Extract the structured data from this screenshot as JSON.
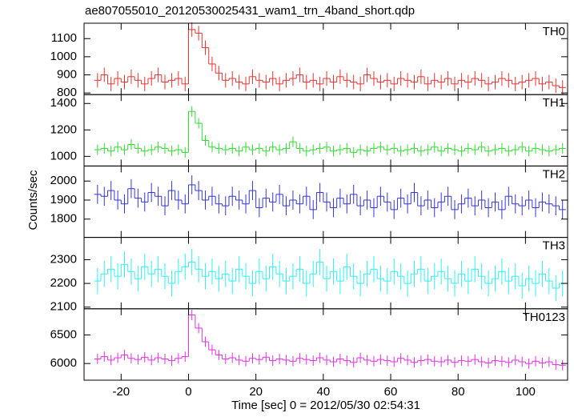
{
  "chart_data": [
    {
      "type": "line",
      "title": "ae807055010_20120530025431_wam1_trn_4band_short.qdp",
      "label": "TH0",
      "color": "#e8322f",
      "error": 40,
      "x": [
        -27,
        -25,
        -23,
        -21,
        -19,
        -17,
        -15,
        -13,
        -11,
        -9,
        -7,
        -5,
        -3,
        -1,
        1,
        3,
        5,
        7,
        9,
        11,
        13,
        15,
        17,
        19,
        21,
        23,
        25,
        27,
        29,
        31,
        33,
        35,
        37,
        39,
        41,
        43,
        45,
        47,
        49,
        51,
        53,
        55,
        57,
        59,
        61,
        63,
        65,
        67,
        69,
        71,
        73,
        75,
        77,
        79,
        81,
        83,
        85,
        87,
        89,
        91,
        93,
        95,
        97,
        99,
        101,
        103,
        105,
        107,
        109,
        111
      ],
      "values": [
        870,
        900,
        850,
        880,
        860,
        890,
        870,
        850,
        880,
        900,
        860,
        870,
        880,
        850,
        1150,
        1130,
        1050,
        960,
        910,
        870,
        880,
        860,
        850,
        890,
        870,
        860,
        880,
        850,
        870,
        880,
        900,
        860,
        870,
        850,
        880,
        860,
        890,
        870,
        860,
        850,
        900,
        880,
        860,
        870,
        850,
        880,
        870,
        860,
        890,
        850,
        870,
        860,
        880,
        850,
        870,
        860,
        880,
        870,
        850,
        860,
        880,
        870,
        850,
        860,
        870,
        880,
        850,
        860,
        840,
        830
      ],
      "ylim": [
        791,
        1185
      ],
      "yticks": [
        800,
        900,
        1000,
        1100
      ]
    },
    {
      "type": "line",
      "label": "TH1",
      "color": "#2fdc2f",
      "error": 40,
      "values": [
        1050,
        1060,
        1040,
        1070,
        1050,
        1090,
        1060,
        1040,
        1050,
        1070,
        1060,
        1040,
        1050,
        1030,
        1340,
        1250,
        1120,
        1070,
        1060,
        1050,
        1060,
        1040,
        1070,
        1050,
        1060,
        1040,
        1070,
        1050,
        1060,
        1110,
        1060,
        1040,
        1050,
        1060,
        1070,
        1040,
        1050,
        1060,
        1030,
        1050,
        1040,
        1060,
        1070,
        1050,
        1060,
        1040,
        1050,
        1060,
        1040,
        1050,
        1070,
        1040,
        1060,
        1050,
        1040,
        1060,
        1050,
        1070,
        1040,
        1050,
        1060,
        1040,
        1050,
        1070,
        1040,
        1060,
        1050,
        1040,
        1050,
        1060
      ],
      "ylim": [
        927,
        1467
      ],
      "yticks": [
        1000,
        1200,
        1400
      ]
    },
    {
      "type": "line",
      "label": "TH2",
      "color": "#3535d8",
      "error": 50,
      "y_label": "Counts/sec",
      "values": [
        1930,
        1920,
        1950,
        1900,
        1880,
        1960,
        1910,
        1890,
        1940,
        1920,
        1870,
        1950,
        1900,
        1880,
        1980,
        1950,
        1900,
        1920,
        1880,
        1870,
        1920,
        1900,
        1880,
        1950,
        1860,
        1910,
        1890,
        1930,
        1870,
        1900,
        1880,
        1920,
        1850,
        1940,
        1890,
        1860,
        1910,
        1880,
        1930,
        1870,
        1900,
        1860,
        1920,
        1890,
        1850,
        1910,
        1880,
        1940,
        1870,
        1900,
        1860,
        1890,
        1920,
        1850,
        1880,
        1910,
        1870,
        1900,
        1860,
        1890,
        1850,
        1920,
        1880,
        1870,
        1900,
        1860,
        1890,
        1880,
        1870,
        1850
      ],
      "ylim": [
        1704,
        2079
      ],
      "yticks": [
        1800,
        1900,
        2000
      ]
    },
    {
      "type": "line",
      "label": "TH3",
      "color": "#2ff0f0",
      "error": 55,
      "values": [
        2210,
        2240,
        2260,
        2230,
        2280,
        2250,
        2220,
        2270,
        2240,
        2260,
        2230,
        2200,
        2250,
        2270,
        2290,
        2260,
        2230,
        2250,
        2220,
        2240,
        2210,
        2260,
        2230,
        2200,
        2250,
        2220,
        2270,
        2240,
        2210,
        2230,
        2260,
        2200,
        2240,
        2290,
        2220,
        2250,
        2210,
        2270,
        2230,
        2200,
        2240,
        2260,
        2220,
        2210,
        2250,
        2230,
        2200,
        2240,
        2260,
        2210,
        2230,
        2250,
        2220,
        2200,
        2240,
        2210,
        2260,
        2230,
        2200,
        2220,
        2250,
        2210,
        2230,
        2190,
        2220,
        2200,
        2240,
        2210,
        2180,
        2200
      ],
      "ylim": [
        2093,
        2394
      ],
      "yticks": [
        2100,
        2200,
        2300
      ]
    },
    {
      "type": "line",
      "label": "TH0123",
      "color": "#e42fe4",
      "error": 90,
      "x_label": "Time [sec] 0 = 2012/05/30 02:54:31",
      "values": [
        6080,
        6120,
        6060,
        6100,
        6150,
        6090,
        6070,
        6110,
        6060,
        6100,
        6080,
        6050,
        6090,
        6120,
        6850,
        6620,
        6380,
        6240,
        6150,
        6080,
        6100,
        6060,
        6040,
        6090,
        6070,
        6110,
        6050,
        6080,
        6060,
        6040,
        6090,
        6070,
        6050,
        6100,
        6060,
        6030,
        6080,
        6050,
        6020,
        6100,
        6060,
        6040,
        6070,
        6050,
        6030,
        6090,
        6060,
        6020,
        6050,
        6070,
        6040,
        6030,
        6060,
        6020,
        6050,
        6040,
        6070,
        6030,
        6010,
        6050,
        6040,
        6020,
        6060,
        6030,
        6000,
        6040,
        6010,
        6030,
        5980,
        5970
      ],
      "ylim": [
        5708,
        6958
      ],
      "yticks": [
        6000,
        6500
      ],
      "xlim": [
        -31,
        112.5
      ],
      "xticks": [
        -20,
        0,
        20,
        40,
        60,
        80,
        100
      ]
    }
  ]
}
